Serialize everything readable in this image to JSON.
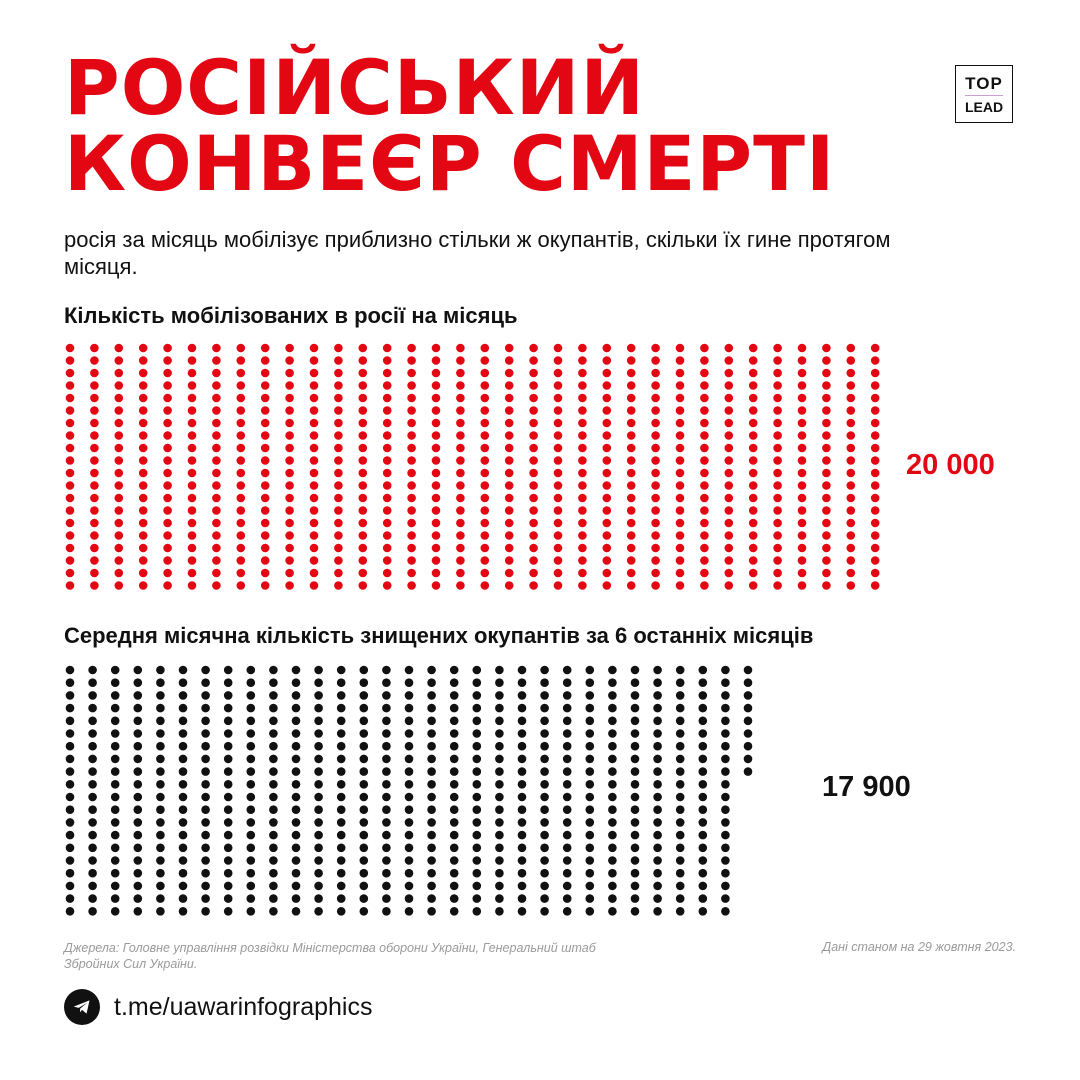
{
  "header": {
    "title_line1": "РОСІЙСЬКИЙ",
    "title_line2": "КОНВЕЄР СМЕРТІ",
    "subtitle": "росія за місяць мобілізує приблизно стільки ж окупантів, скільки їх гине протягом місяця."
  },
  "logo": {
    "top": "TOP",
    "bottom": "LEAD"
  },
  "colors": {
    "accent": "#e30613",
    "dark": "#111111",
    "muted": "#9a9a9a"
  },
  "chart_data": [
    {
      "type": "dot-matrix",
      "title": "Кількість мобілізованих в росії на місяць",
      "value": 20000,
      "value_label": "20 000",
      "color": "#e30613"
    },
    {
      "type": "dot-matrix",
      "title": "Середня місячна кількість знищених окупантів за 6 останніх місяців",
      "value": 17900,
      "value_label": "17 900",
      "color": "#111111"
    }
  ],
  "footer": {
    "sources": "Джерела: Головне управління розвідки Міністерства оборони України, Генеральний штаб Збройних Сил України.",
    "date": "Дані станом на 29 жовтня 2023.",
    "telegram_icon": "telegram-icon",
    "link": "t.me/uawarinfographics"
  }
}
